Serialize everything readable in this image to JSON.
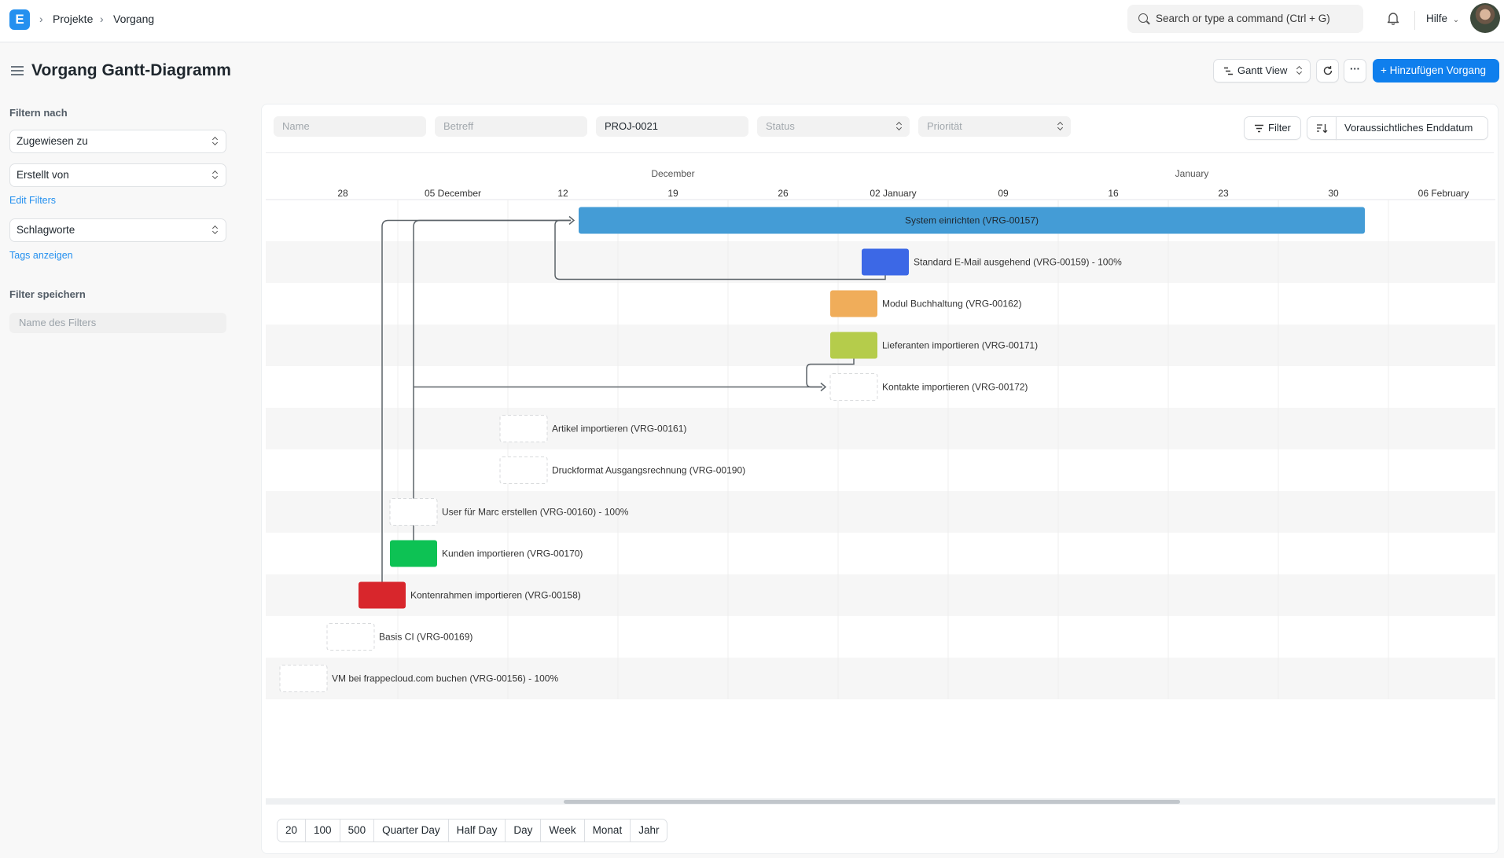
{
  "navbar": {
    "logo": "E",
    "breadcrumbs": [
      "Projekte",
      "Vorgang"
    ],
    "search_placeholder": "Search or type a command (Ctrl + G)",
    "help_label": "Hilfe"
  },
  "page": {
    "title": "Vorgang Gantt-Diagramm",
    "view_label": "Gantt View",
    "add_label": "+ Hinzufügen Vorgang"
  },
  "sidebar": {
    "filter_heading": "Filtern nach",
    "assigned_to": "Zugewiesen zu",
    "created_by": "Erstellt von",
    "edit_filters": "Edit Filters",
    "tags": "Schlagworte",
    "show_tags": "Tags anzeigen",
    "save_heading": "Filter speichern",
    "filter_name_placeholder": "Name des Filters"
  },
  "filters": {
    "name_placeholder": "Name",
    "subject_placeholder": "Betreff",
    "project_value": "PROJ-0021",
    "status_placeholder": "Status",
    "priority_placeholder": "Priorität",
    "filter_label": "Filter",
    "sort_label": "Voraussichtliches Enddatum"
  },
  "gantt": {
    "months": [
      {
        "label": "December",
        "day": 21
      },
      {
        "label": "January",
        "day": 54
      }
    ],
    "weeks": [
      {
        "label": "28",
        "day": 0
      },
      {
        "label": "05 December",
        "day": 7
      },
      {
        "label": "12",
        "day": 14
      },
      {
        "label": "19",
        "day": 21
      },
      {
        "label": "26",
        "day": 28
      },
      {
        "label": "02 January",
        "day": 35
      },
      {
        "label": "09",
        "day": 42
      },
      {
        "label": "16",
        "day": 49
      },
      {
        "label": "23",
        "day": 56
      },
      {
        "label": "30",
        "day": 63
      },
      {
        "label": "06 February",
        "day": 70
      }
    ],
    "tasks": [
      {
        "label": "System einrichten (VRG-00157)",
        "start": 15,
        "end": 65,
        "color": "#449cd6",
        "inside": true
      },
      {
        "label": "Standard E-Mail ausgehend (VRG-00159) - 100%",
        "start": 33,
        "end": 36,
        "color": "#3c68e6"
      },
      {
        "label": "Modul Buchhaltung (VRG-00162)",
        "start": 31,
        "end": 34,
        "color": "#f0ad5a"
      },
      {
        "label": "Lieferanten importieren (VRG-00171)",
        "start": 31,
        "end": 34,
        "color": "#b5cc4b"
      },
      {
        "label": "Kontakte importieren (VRG-00172)",
        "start": 31,
        "end": 34,
        "color": ""
      },
      {
        "label": "Artikel importieren (VRG-00161)",
        "start": 10,
        "end": 13,
        "color": ""
      },
      {
        "label": "Druckformat Ausgangsrechnung (VRG-00190)",
        "start": 10,
        "end": 13,
        "color": ""
      },
      {
        "label": "User für Marc erstellen (VRG-00160) - 100%",
        "start": 3,
        "end": 6,
        "color": ""
      },
      {
        "label": "Kunden importieren (VRG-00170)",
        "start": 3,
        "end": 6,
        "color": "#0dc254"
      },
      {
        "label": "Kontenrahmen importieren (VRG-00158)",
        "start": 1,
        "end": 4,
        "color": "#d8262c"
      },
      {
        "label": "Basis CI (VRG-00169)",
        "start": -1,
        "end": 2,
        "color": ""
      },
      {
        "label": "VM bei frappecloud.com buchen (VRG-00156) - 100%",
        "start": -4,
        "end": -1,
        "color": ""
      }
    ]
  },
  "pager": {
    "page_sizes": [
      "20",
      "100",
      "500"
    ],
    "view_modes": [
      "Quarter Day",
      "Half Day",
      "Day",
      "Week",
      "Monat",
      "Jahr"
    ]
  }
}
